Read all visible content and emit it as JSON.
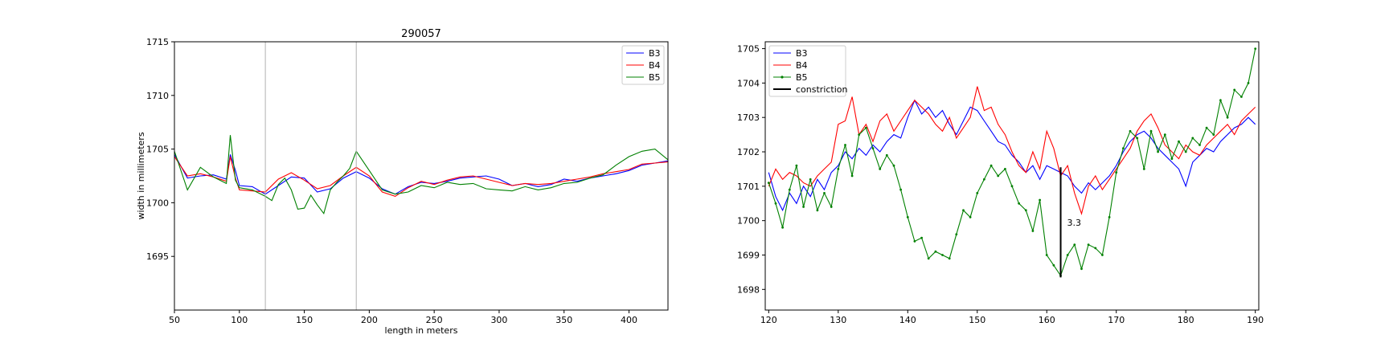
{
  "chart_data": [
    {
      "type": "line",
      "title": "290057",
      "xlabel": "length in meters",
      "ylabel": "width in millimeters",
      "xlim": [
        50,
        430
      ],
      "ylim": [
        1690,
        1715
      ],
      "xticks": [
        50,
        100,
        150,
        200,
        250,
        300,
        350,
        400
      ],
      "yticks": [
        1695,
        1700,
        1705,
        1710,
        1715
      ],
      "vlines": [
        120,
        190
      ],
      "legend": "top-right",
      "grid": false,
      "series": [
        {
          "name": "B3",
          "color": "#0000ff",
          "x": [
            50,
            60,
            70,
            80,
            90,
            93,
            97,
            100,
            110,
            120,
            130,
            140,
            150,
            160,
            170,
            180,
            190,
            200,
            210,
            220,
            230,
            240,
            250,
            260,
            270,
            280,
            290,
            300,
            310,
            320,
            330,
            340,
            350,
            360,
            370,
            380,
            390,
            400,
            410,
            420,
            430
          ],
          "y": [
            1704.5,
            1702.3,
            1702.5,
            1702.6,
            1702.2,
            1704.5,
            1703.0,
            1701.6,
            1701.5,
            1700.8,
            1701.6,
            1702.4,
            1702.3,
            1701.0,
            1701.3,
            1702.3,
            1702.9,
            1702.3,
            1701.3,
            1700.8,
            1701.5,
            1701.9,
            1701.8,
            1702.0,
            1702.3,
            1702.4,
            1702.5,
            1702.2,
            1701.6,
            1701.8,
            1701.5,
            1701.7,
            1702.2,
            1702.0,
            1702.3,
            1702.5,
            1702.7,
            1703.0,
            1703.5,
            1703.7,
            1703.9
          ]
        },
        {
          "name": "B4",
          "color": "#ff0000",
          "x": [
            50,
            60,
            70,
            80,
            90,
            93,
            97,
            100,
            110,
            120,
            130,
            140,
            150,
            160,
            170,
            180,
            190,
            200,
            210,
            220,
            230,
            240,
            250,
            260,
            270,
            280,
            290,
            300,
            310,
            320,
            330,
            340,
            350,
            360,
            370,
            380,
            390,
            400,
            410,
            420,
            430
          ],
          "y": [
            1704.3,
            1702.5,
            1702.7,
            1702.4,
            1702.0,
            1704.3,
            1702.3,
            1701.2,
            1701.1,
            1701.0,
            1702.2,
            1702.8,
            1702.1,
            1701.3,
            1701.6,
            1702.5,
            1703.3,
            1702.5,
            1701.0,
            1700.6,
            1701.4,
            1702.0,
            1701.7,
            1702.1,
            1702.4,
            1702.5,
            1702.2,
            1701.9,
            1701.6,
            1701.8,
            1701.7,
            1701.8,
            1702.0,
            1702.2,
            1702.4,
            1702.7,
            1702.9,
            1703.1,
            1703.6,
            1703.7,
            1703.8
          ]
        },
        {
          "name": "B5",
          "color": "#008000",
          "x": [
            50,
            60,
            70,
            80,
            90,
            93,
            97,
            100,
            110,
            120,
            125,
            130,
            135,
            140,
            145,
            150,
            155,
            160,
            165,
            170,
            175,
            180,
            185,
            190,
            195,
            200,
            210,
            220,
            230,
            240,
            250,
            260,
            270,
            280,
            290,
            300,
            310,
            320,
            330,
            340,
            350,
            360,
            370,
            380,
            390,
            400,
            410,
            420,
            430
          ],
          "y": [
            1704.8,
            1701.2,
            1703.3,
            1702.4,
            1701.8,
            1706.3,
            1702.1,
            1701.4,
            1701.2,
            1700.6,
            1700.2,
            1701.7,
            1702.3,
            1701.2,
            1699.4,
            1699.5,
            1700.7,
            1699.8,
            1699.0,
            1701.2,
            1701.9,
            1702.5,
            1703.2,
            1704.8,
            1703.9,
            1703.0,
            1701.2,
            1700.8,
            1701.0,
            1701.6,
            1701.4,
            1701.9,
            1701.7,
            1701.8,
            1701.3,
            1701.2,
            1701.1,
            1701.5,
            1701.2,
            1701.4,
            1701.8,
            1701.9,
            1702.3,
            1702.6,
            1703.5,
            1704.3,
            1704.8,
            1705.0,
            1704.0
          ]
        }
      ]
    },
    {
      "type": "line",
      "title": "",
      "xlabel": "",
      "ylabel": "",
      "xlim": [
        119.5,
        190.5
      ],
      "ylim": [
        1697.4,
        1705.2
      ],
      "xticks": [
        120,
        130,
        140,
        150,
        160,
        170,
        180,
        190
      ],
      "yticks": [
        1698,
        1699,
        1700,
        1701,
        1702,
        1703,
        1704,
        1705
      ],
      "legend": "top-left",
      "grid": false,
      "series": [
        {
          "name": "B3",
          "color": "#0000ff",
          "marker": false,
          "x": [
            120,
            121,
            122,
            123,
            124,
            125,
            126,
            127,
            128,
            129,
            130,
            131,
            132,
            133,
            134,
            135,
            136,
            137,
            138,
            139,
            140,
            141,
            142,
            143,
            144,
            145,
            146,
            147,
            148,
            149,
            150,
            151,
            152,
            153,
            154,
            155,
            156,
            157,
            158,
            159,
            160,
            161,
            162,
            163,
            164,
            165,
            166,
            167,
            168,
            169,
            170,
            171,
            172,
            173,
            174,
            175,
            176,
            177,
            178,
            179,
            180,
            181,
            182,
            183,
            184,
            185,
            186,
            187,
            188,
            189,
            190
          ],
          "y": [
            1701.4,
            1700.7,
            1700.3,
            1700.8,
            1700.5,
            1701.0,
            1700.7,
            1701.2,
            1700.9,
            1701.4,
            1701.6,
            1702.0,
            1701.8,
            1702.1,
            1701.9,
            1702.2,
            1702.0,
            1702.3,
            1702.5,
            1702.4,
            1703.0,
            1703.5,
            1703.1,
            1703.3,
            1703.0,
            1703.2,
            1702.8,
            1702.5,
            1702.9,
            1703.3,
            1703.2,
            1702.9,
            1702.6,
            1702.3,
            1702.2,
            1701.9,
            1701.7,
            1701.4,
            1701.6,
            1701.2,
            1701.6,
            1701.5,
            1701.4,
            1701.3,
            1701.0,
            1700.8,
            1701.1,
            1700.9,
            1701.1,
            1701.3,
            1701.6,
            1702.0,
            1702.3,
            1702.5,
            1702.6,
            1702.4,
            1702.1,
            1701.9,
            1701.7,
            1701.5,
            1701.0,
            1701.7,
            1701.9,
            1702.1,
            1702.0,
            1702.3,
            1702.5,
            1702.7,
            1702.8,
            1703.0,
            1702.8
          ]
        },
        {
          "name": "B4",
          "color": "#ff0000",
          "marker": false,
          "x": [
            120,
            121,
            122,
            123,
            124,
            125,
            126,
            127,
            128,
            129,
            130,
            131,
            132,
            133,
            134,
            135,
            136,
            137,
            138,
            139,
            140,
            141,
            142,
            143,
            144,
            145,
            146,
            147,
            148,
            149,
            150,
            151,
            152,
            153,
            154,
            155,
            156,
            157,
            158,
            159,
            160,
            161,
            162,
            163,
            164,
            165,
            166,
            167,
            168,
            169,
            170,
            171,
            172,
            173,
            174,
            175,
            176,
            177,
            178,
            179,
            180,
            181,
            182,
            183,
            184,
            185,
            186,
            187,
            188,
            189,
            190
          ],
          "y": [
            1701.0,
            1701.5,
            1701.2,
            1701.4,
            1701.3,
            1701.1,
            1701.0,
            1701.3,
            1701.5,
            1701.7,
            1702.8,
            1702.9,
            1703.6,
            1702.5,
            1702.8,
            1702.3,
            1702.9,
            1703.1,
            1702.6,
            1702.9,
            1703.2,
            1703.5,
            1703.3,
            1703.1,
            1702.8,
            1702.6,
            1703.0,
            1702.4,
            1702.7,
            1703.0,
            1703.9,
            1703.2,
            1703.3,
            1702.8,
            1702.5,
            1702.0,
            1701.6,
            1701.4,
            1702.0,
            1701.5,
            1702.6,
            1702.1,
            1701.3,
            1701.6,
            1700.8,
            1700.2,
            1701.0,
            1701.3,
            1700.9,
            1701.2,
            1701.5,
            1701.8,
            1702.1,
            1702.6,
            1702.9,
            1703.1,
            1702.7,
            1702.2,
            1702.0,
            1701.8,
            1702.2,
            1702.0,
            1701.9,
            1702.2,
            1702.4,
            1702.6,
            1702.8,
            1702.5,
            1702.9,
            1703.1,
            1703.3
          ]
        },
        {
          "name": "B5",
          "color": "#008000",
          "marker": true,
          "x": [
            120,
            121,
            122,
            123,
            124,
            125,
            126,
            127,
            128,
            129,
            130,
            131,
            132,
            133,
            134,
            135,
            136,
            137,
            138,
            139,
            140,
            141,
            142,
            143,
            144,
            145,
            146,
            147,
            148,
            149,
            150,
            151,
            152,
            153,
            154,
            155,
            156,
            157,
            158,
            159,
            160,
            161,
            162,
            163,
            164,
            165,
            166,
            167,
            168,
            169,
            170,
            171,
            172,
            173,
            174,
            175,
            176,
            177,
            178,
            179,
            180,
            181,
            182,
            183,
            184,
            185,
            186,
            187,
            188,
            189,
            190
          ],
          "y": [
            1701.1,
            1700.5,
            1699.8,
            1700.9,
            1701.6,
            1700.4,
            1701.2,
            1700.3,
            1700.8,
            1700.4,
            1701.5,
            1702.2,
            1701.3,
            1702.5,
            1702.7,
            1702.1,
            1701.5,
            1701.9,
            1701.6,
            1700.9,
            1700.1,
            1699.4,
            1699.5,
            1698.9,
            1699.1,
            1699.0,
            1698.9,
            1699.6,
            1700.3,
            1700.1,
            1700.8,
            1701.2,
            1701.6,
            1701.3,
            1701.5,
            1701.0,
            1700.5,
            1700.3,
            1699.7,
            1700.6,
            1699.0,
            1698.7,
            1698.4,
            1699.0,
            1699.3,
            1698.6,
            1699.3,
            1699.2,
            1699.0,
            1700.1,
            1701.4,
            1702.1,
            1702.6,
            1702.4,
            1701.5,
            1702.6,
            1702.0,
            1702.5,
            1701.8,
            1702.3,
            1702.0,
            1702.4,
            1702.2,
            1702.7,
            1702.5,
            1703.5,
            1703.0,
            1703.8,
            1703.6,
            1704.0,
            1705.0
          ]
        }
      ],
      "constriction": {
        "name": "constriction",
        "x": 162,
        "y1": 1698.35,
        "y2": 1701.55,
        "label": "3.3",
        "color": "#000000"
      }
    }
  ]
}
